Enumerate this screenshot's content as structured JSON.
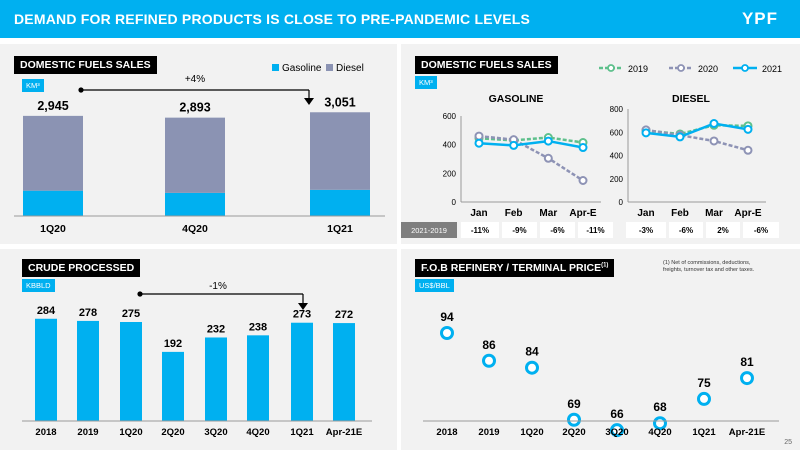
{
  "header": {
    "title": "DEMAND FOR REFINED PRODUCTS IS CLOSE TO PRE-PANDEMIC LEVELS",
    "logo": "YPF"
  },
  "page_number": "25",
  "colors": {
    "accent": "#00b0f0",
    "diesel": "#8b93b3",
    "y2019": "#5ec08c",
    "y2020": "#8e93b5",
    "y2021": "#00b0f0"
  },
  "panel1": {
    "title": "DOMESTIC FUELS SALES",
    "unit": "KM³",
    "delta": "+4%",
    "legend": [
      "Gasoline",
      "Diesel"
    ]
  },
  "panel2": {
    "title": "DOMESTIC FUELS SALES",
    "unit": "KM³",
    "legend": [
      "2019",
      "2020",
      "2021"
    ],
    "row_label": "2021-2019"
  },
  "panel3": {
    "title": "CRUDE PROCESSED",
    "unit": "KBBLD",
    "delta": "-1%"
  },
  "panel4": {
    "title": "F.O.B REFINERY / TERMINAL PRICE",
    "title_sup": "(1)",
    "unit": "US$/BBL",
    "footnote": [
      "(1) Net of commissions, deductions,",
      "freights, turnover tax and other taxes."
    ]
  },
  "chart_data": [
    {
      "type": "bar",
      "stacked": true,
      "categories": [
        "1Q20",
        "4Q20",
        "1Q21"
      ],
      "series": [
        {
          "name": "Gasoline",
          "values": [
            745,
            680,
            770
          ]
        },
        {
          "name": "Diesel",
          "values": [
            2200,
            2213,
            2281
          ]
        }
      ],
      "totals": [
        "2,945",
        "2,893",
        "3,051"
      ]
    },
    {
      "type": "line",
      "title": "GASOLINE",
      "categories": [
        "Jan",
        "Feb",
        "Mar",
        "Apr-E"
      ],
      "ylim": [
        0,
        600
      ],
      "yticks": [
        0,
        200,
        400,
        600
      ],
      "series": [
        {
          "name": "2019",
          "values": [
            445,
            430,
            450,
            415
          ]
        },
        {
          "name": "2020",
          "values": [
            460,
            435,
            305,
            150
          ]
        },
        {
          "name": "2021",
          "values": [
            410,
            395,
            425,
            380
          ]
        }
      ],
      "variation": [
        "-11%",
        "-9%",
        "-6%",
        "-11%"
      ]
    },
    {
      "type": "line",
      "title": "DIESEL",
      "categories": [
        "Jan",
        "Feb",
        "Mar",
        "Apr-E"
      ],
      "ylim": [
        0,
        800
      ],
      "yticks": [
        0,
        200,
        400,
        600,
        800
      ],
      "series": [
        {
          "name": "2019",
          "values": [
            615,
            585,
            660,
            655
          ]
        },
        {
          "name": "2020",
          "values": [
            620,
            575,
            525,
            445
          ]
        },
        {
          "name": "2021",
          "values": [
            595,
            560,
            675,
            625
          ]
        }
      ],
      "variation": [
        "-3%",
        "-6%",
        "2%",
        "-6%"
      ]
    },
    {
      "type": "bar",
      "categories": [
        "2018",
        "2019",
        "1Q20",
        "2Q20",
        "3Q20",
        "4Q20",
        "1Q21",
        "Apr-21E"
      ],
      "values": [
        284,
        278,
        275,
        192,
        232,
        238,
        273,
        272
      ]
    },
    {
      "type": "scatter",
      "categories": [
        "2018",
        "2019",
        "1Q20",
        "2Q20",
        "3Q20",
        "4Q20",
        "1Q21",
        "Apr-21E"
      ],
      "values": [
        94,
        86,
        84,
        69,
        66,
        68,
        75,
        81
      ]
    }
  ]
}
